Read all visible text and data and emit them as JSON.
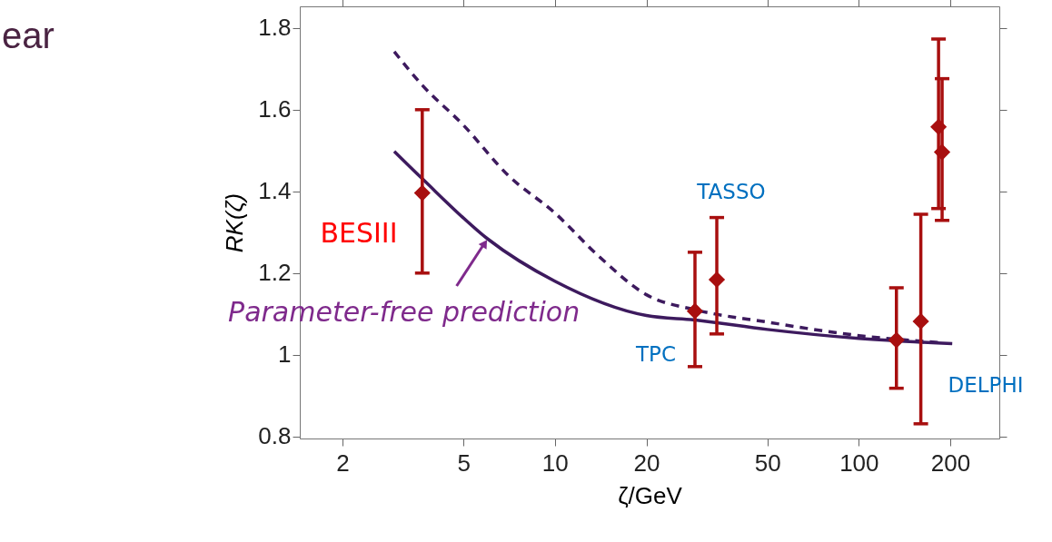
{
  "chart_data": {
    "type": "line",
    "xlabel": "ζ/GeV",
    "ylabel": "RK(ζ)",
    "log": "x",
    "grid": false,
    "xlim": [
      1.447,
      290
    ],
    "xticks": [
      2,
      5,
      10,
      20,
      50,
      100,
      200
    ],
    "ylim": [
      0.795,
      1.853
    ],
    "yticks": [
      0.8,
      1,
      1.2,
      1.4,
      1.6,
      1.8
    ],
    "series": [
      {
        "line_style": "dashed",
        "marker": "none",
        "color": "#3d1a5e",
        "x": [
          2.96,
          3.66,
          5,
          7,
          10,
          14,
          20,
          29,
          50,
          100,
          183
        ],
        "values": [
          1.742,
          1.66,
          1.562,
          1.44,
          1.347,
          1.24,
          1.147,
          1.11,
          1.08,
          1.047,
          1.03
        ]
      },
      {
        "line_style": "solid",
        "marker": "none",
        "color": "#3d1a5e",
        "x": [
          2.96,
          3.66,
          6.0,
          10,
          20,
          29,
          50,
          100,
          203
        ],
        "values": [
          1.498,
          1.431,
          1.284,
          1.18,
          1.096,
          1.085,
          1.062,
          1.04,
          1.027
        ]
      },
      {
        "type": "scatter",
        "marker": "diamond",
        "color": "#a80f0f",
        "x": [
          3.66,
          28.9,
          34.1,
          133,
          160,
          183,
          188
        ],
        "values": [
          1.396,
          1.107,
          1.184,
          1.036,
          1.082,
          1.558,
          1.496
        ],
        "errors": [
          [
            1.2,
            1.6
          ],
          [
            0.971,
            1.251
          ],
          [
            1.051,
            1.336
          ],
          [
            0.918,
            1.164
          ],
          [
            0.831,
            1.344
          ],
          [
            1.358,
            1.773
          ],
          [
            1.329,
            1.676
          ]
        ]
      }
    ],
    "annotations": [
      "ear",
      "BESIII",
      "TASSO",
      "TPC",
      "DELPHI",
      {
        "text": "Parameter-free prediction",
        "x": 6.0,
        "y": 1.284
      }
    ]
  }
}
